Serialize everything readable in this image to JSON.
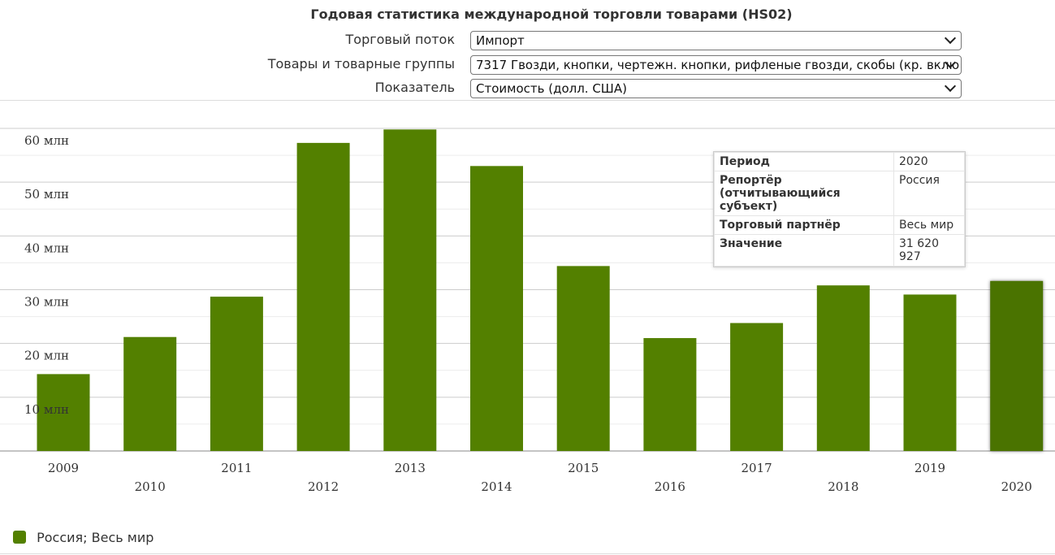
{
  "page_title": "Годовая статистика международной торговли товарами (HS02)",
  "filters": [
    {
      "label": "Торговый поток",
      "value": "Импорт"
    },
    {
      "label": "Товары и товарные группы",
      "value": "7317 Гвозди, кнопки, чертежн. кнопки, рифленые гвозди, скобы (кр. вклю"
    },
    {
      "label": "Показатель",
      "value": "Стоимость (долл. США)"
    }
  ],
  "chart_data": {
    "type": "bar",
    "categories": [
      "2009",
      "2010",
      "2011",
      "2012",
      "2013",
      "2014",
      "2015",
      "2016",
      "2017",
      "2018",
      "2019",
      "2020"
    ],
    "series": [
      {
        "name": "Россия; Весь мир",
        "values": [
          14300000,
          21200000,
          28700000,
          57300000,
          59800000,
          53000000,
          34400000,
          21000000,
          23800000,
          30800000,
          29100000,
          31620927
        ]
      }
    ],
    "ylim": [
      0,
      60000000
    ],
    "yticks": [
      10000000,
      20000000,
      30000000,
      40000000,
      50000000,
      60000000
    ],
    "ytick_labels": [
      "10 млн",
      "20 млн",
      "30 млн",
      "40 млн",
      "50 млн",
      "60 млн"
    ],
    "bar_color": "#538000",
    "highlight_color": "#4a7300",
    "highlight_index": 11,
    "grid": true,
    "legend": "bottom-left"
  },
  "tooltip": {
    "rows": [
      {
        "key": "Период",
        "value": "2020"
      },
      {
        "key": "Репортёр (отчитывающийся субъект)",
        "value": "Россия"
      },
      {
        "key": "Торговый партнёр",
        "value": "Весь мир"
      },
      {
        "key": "Значение",
        "value": "31 620 927"
      }
    ]
  },
  "legend": {
    "label": "Россия; Весь мир",
    "color": "#538000"
  }
}
